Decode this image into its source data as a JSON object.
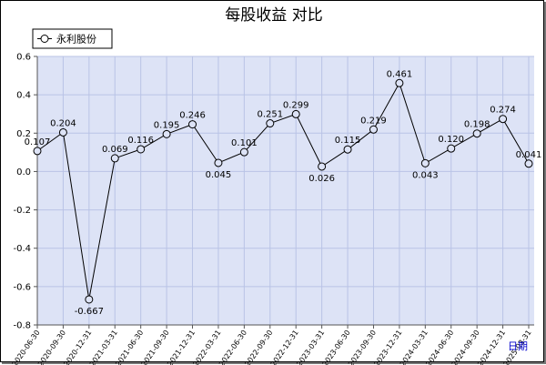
{
  "chart_data": {
    "type": "line",
    "title": "每股收益  对比",
    "xlabel": "日期",
    "ylabel": "",
    "ylim": [
      -0.8,
      0.6
    ],
    "yticks": [
      "0.6",
      "0.4",
      "0.2",
      "0.0",
      "-0.2",
      "-0.4",
      "-0.6",
      "-0.8"
    ],
    "grid": true,
    "legend_position": "top-left",
    "categories": [
      "2020-06-30",
      "2020-09-30",
      "2020-12-31",
      "2021-03-31",
      "2021-06-30",
      "2021-09-30",
      "2021-12-31",
      "2022-03-31",
      "2022-06-30",
      "2022-09-30",
      "2022-12-31",
      "2023-03-31",
      "2023-06-30",
      "2023-09-30",
      "2023-12-31",
      "2024-03-31",
      "2024-06-30",
      "2024-09-30",
      "2024-12-31",
      "2025-03-31"
    ],
    "series": [
      {
        "name": "永利股份",
        "values": [
          0.107,
          0.204,
          -0.667,
          0.069,
          0.116,
          0.195,
          0.246,
          0.045,
          0.101,
          0.251,
          0.299,
          0.026,
          0.115,
          0.219,
          0.461,
          0.043,
          0.12,
          0.198,
          0.274,
          0.041
        ],
        "labels": [
          "0.107",
          "0.204",
          "-0.667",
          "0.069",
          "0.116",
          "0.195",
          "0.246",
          "0.045",
          "0.101",
          "0.251",
          "0.299",
          "0.026",
          "0.115",
          "0.219",
          "0.461",
          "0.043",
          "0.120",
          "0.198",
          "0.274",
          "0.041"
        ]
      }
    ],
    "colors": {
      "plot_background": "#dde3f6",
      "grid": "#b9c3e6",
      "line": "#000000",
      "marker_fill": "#dde3f6"
    }
  }
}
